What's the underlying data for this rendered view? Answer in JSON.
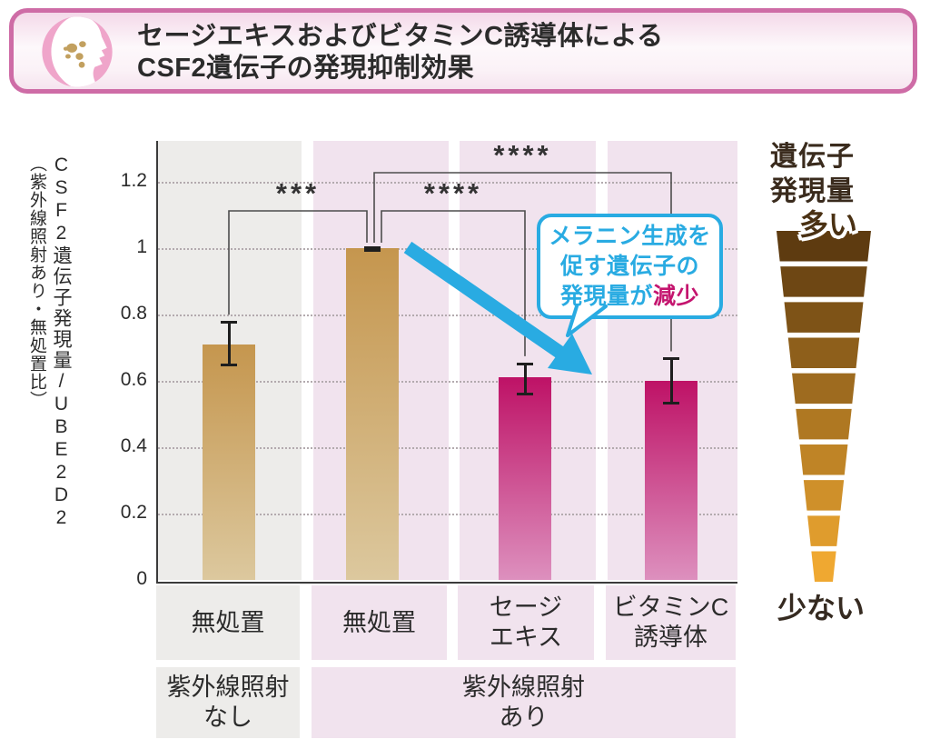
{
  "header": {
    "icon": "face-profile-with-spots-icon",
    "title_line1": "セージエキスおよびビタミンC誘導体による",
    "title_line2": "CSF2遺伝子の発現抑制効果"
  },
  "chart_data": {
    "type": "bar",
    "title": "セージエキスおよびビタミンC誘導体によるCSF2遺伝子の発現抑制効果",
    "ylabel_main": "CSF2遺伝子発現量/UBE2D2",
    "ylabel_sub": "（紫外線照射あり・無処置比）",
    "yticks": [
      0,
      0.2,
      0.4,
      0.6,
      0.8,
      1,
      1.2
    ],
    "ytick_labels": [
      "0",
      "0.2",
      "0.4",
      "0.6",
      "0.8",
      "1",
      "1.2"
    ],
    "ylim": [
      0,
      1.32
    ],
    "grid": "horizontal-dotted",
    "legend_position": "none",
    "categories": [
      {
        "line1": "無処置",
        "line2": ""
      },
      {
        "line1": "無処置",
        "line2": ""
      },
      {
        "line1": "セージ",
        "line2": "エキス"
      },
      {
        "line1": "ビタミンC",
        "line2": "誘導体"
      }
    ],
    "group_labels": [
      {
        "line1": "紫外線照射",
        "line2": "なし",
        "span": 1
      },
      {
        "line1": "紫外線照射",
        "line2": "あり",
        "span": 3
      }
    ],
    "values": [
      0.71,
      1.0,
      0.61,
      0.6
    ],
    "error_bars": [
      [
        0.645,
        0.78
      ],
      [
        0.993,
        1.005
      ],
      [
        0.555,
        0.655
      ],
      [
        0.53,
        0.67
      ]
    ],
    "bar_styles": [
      "tan",
      "tan",
      "magenta",
      "magenta"
    ],
    "significance": [
      {
        "between": [
          0,
          1
        ],
        "label": "***"
      },
      {
        "between": [
          1,
          2
        ],
        "label": "****"
      },
      {
        "between": [
          1,
          3
        ],
        "label": "****"
      }
    ]
  },
  "callout": {
    "line1": "メラニン生成を",
    "line2": "促す遺伝子の",
    "line3_prefix": "発現量が",
    "line3_highlight": "減少"
  },
  "legend": {
    "title_line1": "遺伝子",
    "title_line2": "発現量",
    "top_label": "多い",
    "bottom_label": "少ない",
    "segments": 10
  },
  "colors": {
    "accent_blue": "#29ABE2",
    "highlight_magenta": "#C4146E",
    "header_border": "#CE6CA6",
    "bar_tan_top": "#C5964E",
    "bar_tan_bottom": "#DCC89E",
    "bar_magenta_top": "#BE1266",
    "bar_magenta_bottom": "#DD90BE",
    "column_gray": "#EDECEA",
    "column_pink": "#F1E3EE",
    "funnel_dark": "#5E3B10",
    "funnel_light": "#EFA831",
    "axis": "#3B3B3B",
    "grid": "#B3AAAE",
    "error_bar": "#1E1E1E",
    "significance_line": "#4D4D4D"
  }
}
